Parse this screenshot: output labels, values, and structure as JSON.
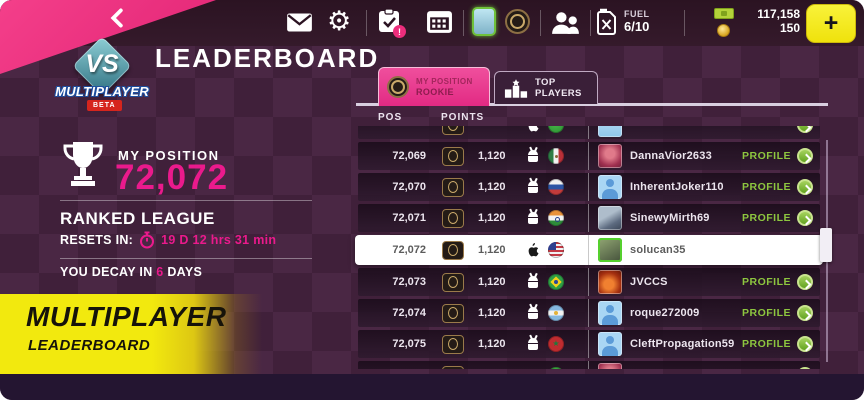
{
  "topbar": {
    "fuel": {
      "label": "FUEL",
      "value": "6/10"
    },
    "currency": {
      "cash": "117,158",
      "gold": "150"
    },
    "plus_label": "+"
  },
  "logo": {
    "vs": "VS",
    "name": "MULTIPLAYER",
    "beta": "BETA"
  },
  "page": {
    "title": "LEADERBOARD"
  },
  "my_position": {
    "label": "MY POSITION",
    "value": "72,072",
    "league_title": "RANKED LEAGUE",
    "resets_label": "RESETS IN:",
    "resets_value": "19 D 12 hrs 31 min",
    "decay_prefix": "YOU DECAY IN ",
    "decay_value": "6",
    "decay_suffix": " DAYS"
  },
  "banner": {
    "title": "MULTIPLAYER",
    "subtitle": "LEADERBOARD"
  },
  "tabs": {
    "my_position": {
      "label": "MY POSITION",
      "sublabel": "ROOKIE"
    },
    "top_players": {
      "label": "TOP PLAYERS"
    }
  },
  "table": {
    "columns": {
      "pos": "POS",
      "points": "POINTS"
    },
    "profile_label": "PROFILE",
    "rows": [
      {
        "pos": "72,069",
        "points": "1,120",
        "platform": "android",
        "flag": "mexico",
        "avatar": "art-pink",
        "name": "DannaVior2633",
        "highlight": false
      },
      {
        "pos": "72,070",
        "points": "1,120",
        "platform": "android",
        "flag": "russia",
        "avatar": "default",
        "name": "InherentJoker110",
        "highlight": false
      },
      {
        "pos": "72,071",
        "points": "1,120",
        "platform": "android",
        "flag": "india",
        "avatar": "art-gray",
        "name": "SinewyMirth69",
        "highlight": false
      },
      {
        "pos": "72,072",
        "points": "1,120",
        "platform": "apple",
        "flag": "usa",
        "avatar": "art-green",
        "name": "solucan35",
        "highlight": true
      },
      {
        "pos": "72,073",
        "points": "1,120",
        "platform": "android",
        "flag": "brazil",
        "avatar": "art-fire",
        "name": "JVCCS",
        "highlight": false
      },
      {
        "pos": "72,074",
        "points": "1,120",
        "platform": "android",
        "flag": "argentina",
        "avatar": "default",
        "name": "roque272009",
        "highlight": false
      },
      {
        "pos": "72,075",
        "points": "1,120",
        "platform": "android",
        "flag": "morocco",
        "avatar": "default",
        "name": "CleftPropagation59",
        "highlight": false
      }
    ],
    "partial_top": {
      "pos": "",
      "points": "",
      "platform": "apple",
      "flag": "green",
      "avatar": "art-sky",
      "name": "",
      "highlight": false
    },
    "partial_bottom": {
      "pos": "",
      "points": "",
      "flag": "green",
      "avatar": "art-pink",
      "name": "",
      "highlight": false
    }
  },
  "colors": {
    "accent_pink": "#ea1a8c",
    "accent_yellow": "#f2e90e",
    "profile_green": "#8dc63f"
  }
}
